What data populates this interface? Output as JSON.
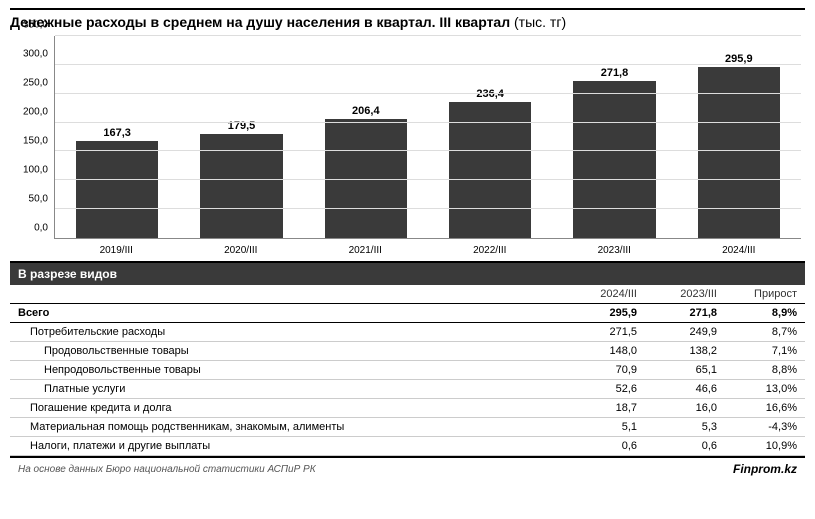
{
  "title": {
    "bold": "Денежные расходы в среднем на душу населения в квартал. III квартал",
    "light": "(тыс. тг)"
  },
  "chart": {
    "type": "bar",
    "categories": [
      "2019/III",
      "2020/III",
      "2021/III",
      "2022/III",
      "2023/III",
      "2024/III"
    ],
    "values": [
      167.3,
      179.5,
      206.4,
      236.4,
      271.8,
      295.9
    ],
    "value_labels": [
      "167,3",
      "179,5",
      "206,4",
      "236,4",
      "271,8",
      "295,9"
    ],
    "bar_color": "#3a3a3a",
    "ylim": [
      0,
      350
    ],
    "ytick_step": 50,
    "y_ticks": [
      "0,0",
      "50,0",
      "100,0",
      "150,0",
      "200,0",
      "250,0",
      "300,0",
      "350,0"
    ],
    "grid_color": "#dddddd",
    "background_color": "#ffffff",
    "label_fontsize": 11,
    "axis_fontsize": 10
  },
  "table": {
    "section_title": "В разрезе видов",
    "columns": [
      "",
      "2024/III",
      "2023/III",
      "Прирост"
    ],
    "rows": [
      {
        "label": "Всего",
        "c1": "295,9",
        "c2": "271,8",
        "c3": "8,9%",
        "class": "total"
      },
      {
        "label": "Потребительские расходы",
        "c1": "271,5",
        "c2": "249,9",
        "c3": "8,7%",
        "class": "indent1"
      },
      {
        "label": "Продовольственные товары",
        "c1": "148,0",
        "c2": "138,2",
        "c3": "7,1%",
        "class": "indent2"
      },
      {
        "label": "Непродовольственные товары",
        "c1": "70,9",
        "c2": "65,1",
        "c3": "8,8%",
        "class": "indent2"
      },
      {
        "label": "Платные услуги",
        "c1": "52,6",
        "c2": "46,6",
        "c3": "13,0%",
        "class": "indent2"
      },
      {
        "label": "Погашение кредита и долга",
        "c1": "18,7",
        "c2": "16,0",
        "c3": "16,6%",
        "class": "indent1"
      },
      {
        "label": "Материальная помощь родственникам, знакомым, алименты",
        "c1": "5,1",
        "c2": "5,3",
        "c3": "-4,3%",
        "class": "indent1"
      },
      {
        "label": "Налоги, платежи и другие выплаты",
        "c1": "0,6",
        "c2": "0,6",
        "c3": "10,9%",
        "class": "indent1"
      }
    ]
  },
  "footer": {
    "source": "На основе данных Бюро национальной статистики АСПиР РК",
    "brand": "Finprom.kz"
  }
}
